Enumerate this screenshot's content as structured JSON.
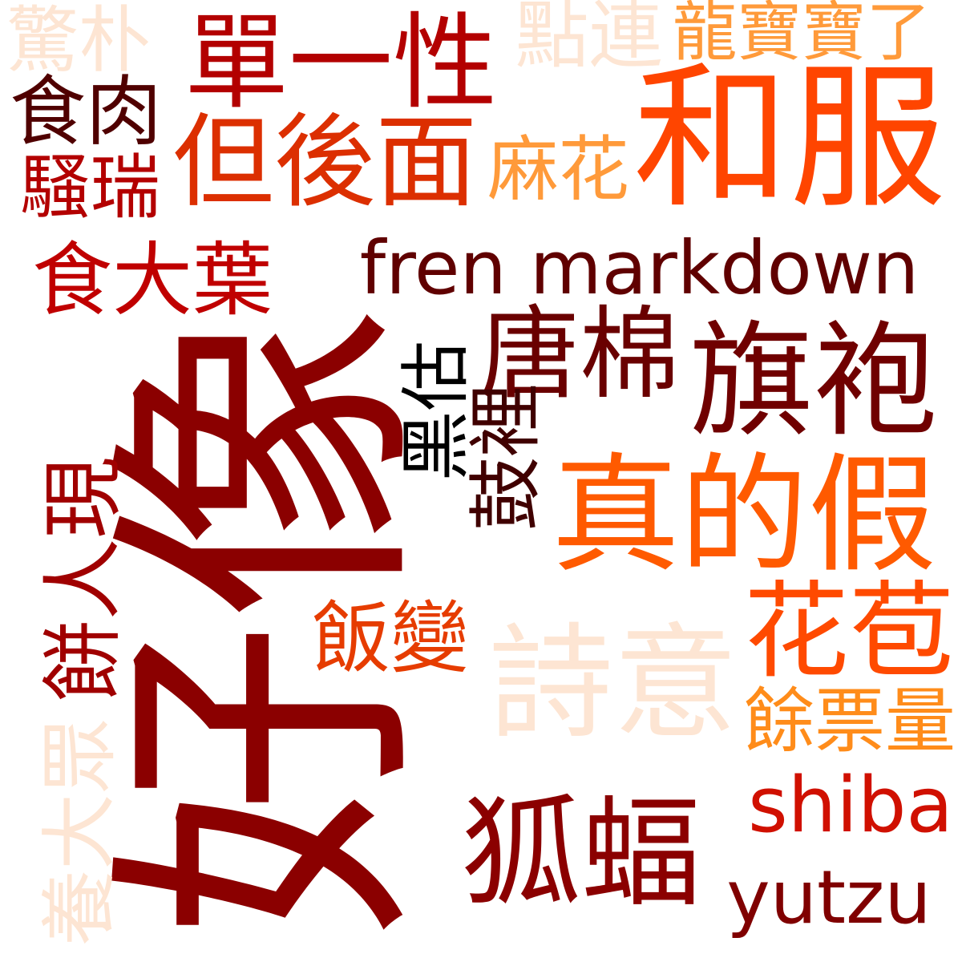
{
  "words": [
    {
      "text": "好像",
      "color": "#8b0000",
      "vertical": true
    },
    {
      "text": "和服",
      "color": "#ff4500",
      "vertical": false
    },
    {
      "text": "但後面",
      "color": "#dc2f00",
      "vertical": false
    },
    {
      "text": "fren markdown",
      "color": "#600000",
      "vertical": false
    },
    {
      "text": "真的假",
      "color": "#ff5a00",
      "vertical": false
    },
    {
      "text": "旗袍",
      "color": "#700000",
      "vertical": false
    },
    {
      "text": "唐棉",
      "color": "#6a0000",
      "vertical": false
    },
    {
      "text": "單一性",
      "color": "#b30000",
      "vertical": false
    },
    {
      "text": "詩意",
      "color": "#fde5d3",
      "vertical": false
    },
    {
      "text": "狐蝠",
      "color": "#8b0000",
      "vertical": false
    },
    {
      "text": "花苞",
      "color": "#ff4a00",
      "vertical": false
    },
    {
      "text": "yutzu",
      "color": "#800000",
      "vertical": false
    },
    {
      "text": "shiba",
      "color": "#d01000",
      "vertical": false
    },
    {
      "text": "食大葉",
      "color": "#c00000",
      "vertical": false
    },
    {
      "text": "餘票量",
      "color": "#ff8c1a",
      "vertical": false
    },
    {
      "text": "龍寶寶了",
      "color": "#ff9a3a",
      "vertical": false
    },
    {
      "text": "點連",
      "color": "#fde5d3",
      "vertical": false
    },
    {
      "text": "麻花",
      "color": "#ff9a3a",
      "vertical": false
    },
    {
      "text": "飯變",
      "color": "#e63c00",
      "vertical": false
    },
    {
      "text": "食肉",
      "color": "#500000",
      "vertical": false
    },
    {
      "text": "騷瑞",
      "color": "#b30000",
      "vertical": false
    },
    {
      "text": "驚朴",
      "color": "#fde5d3",
      "vertical": false
    },
    {
      "text": "黑估",
      "color": "#000000",
      "vertical": true
    },
    {
      "text": "鼓裡",
      "color": "#400000",
      "vertical": true
    },
    {
      "text": "餅人現",
      "color": "#a00000",
      "vertical": true
    },
    {
      "text": "養大眾",
      "color": "#fde5d3",
      "vertical": true
    }
  ]
}
